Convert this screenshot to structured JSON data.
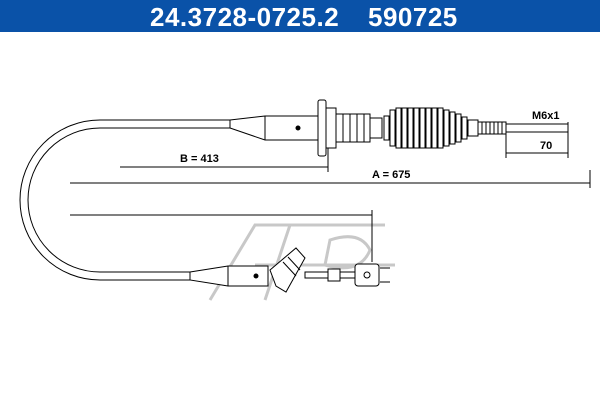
{
  "header": {
    "part_number": "24.3728-0725.2",
    "ref_number": "590725"
  },
  "dimensions": {
    "a_label": "A = 675",
    "b_label": "B = 413",
    "thread_label": "M6x1",
    "length_70_label": "70"
  },
  "colors": {
    "header_bg": "#0a52a8",
    "line": "#000000",
    "watermark": "#c8c8c8"
  }
}
